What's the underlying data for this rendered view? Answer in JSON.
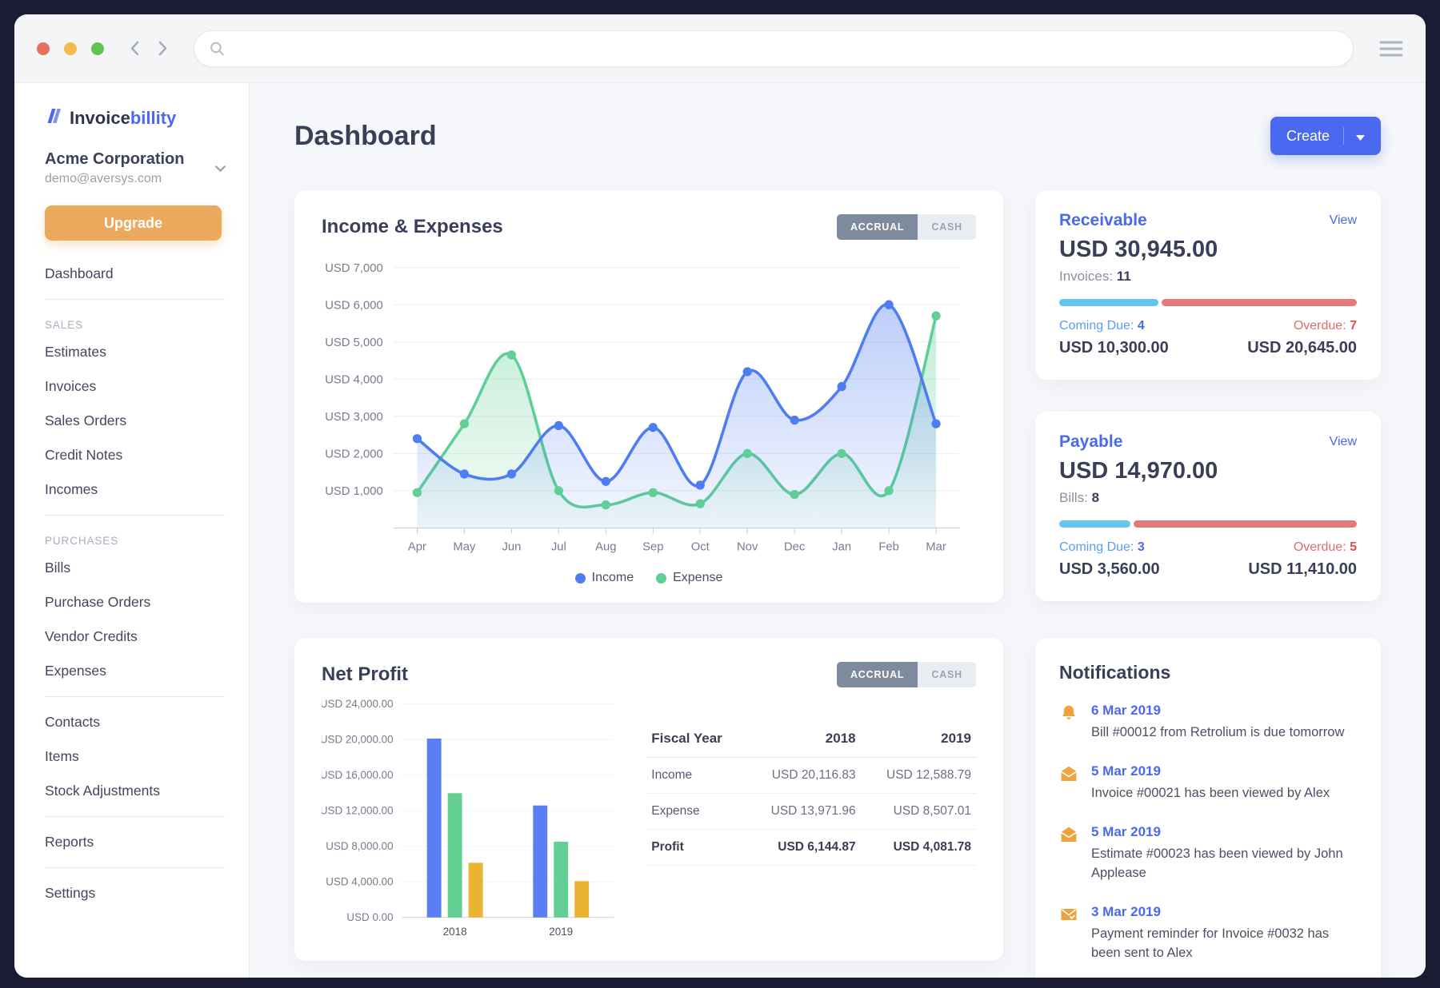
{
  "colors": {
    "accent_blue": "#4a68f0",
    "navy": "#3a3e59",
    "upgrade_orange": "#eaa95d",
    "notification_orange": "#f0a23e",
    "chart_income_blue": "#4e7df2",
    "chart_expense_green": "#5fcf95",
    "bar_profit_yellow": "#eab331",
    "progress_blue": "#63c6ef",
    "progress_red": "#e57a7a",
    "overdue_red": "#e06c6c",
    "coming_due_blue": "#5a9df5"
  },
  "chrome": {
    "search_value": ""
  },
  "sidebar": {
    "logo_text_1": "Invoice",
    "logo_text_2": "billity",
    "company_name": "Acme Corporation",
    "company_email": "demo@aversys.com",
    "upgrade_label": "Upgrade",
    "nav": [
      {
        "type": "item",
        "label": "Dashboard"
      },
      {
        "type": "divider"
      },
      {
        "type": "section",
        "label": "SALES"
      },
      {
        "type": "item",
        "label": "Estimates"
      },
      {
        "type": "item",
        "label": "Invoices"
      },
      {
        "type": "item",
        "label": "Sales Orders"
      },
      {
        "type": "item",
        "label": "Credit Notes"
      },
      {
        "type": "item",
        "label": "Incomes"
      },
      {
        "type": "divider"
      },
      {
        "type": "section",
        "label": "PURCHASES"
      },
      {
        "type": "item",
        "label": "Bills"
      },
      {
        "type": "item",
        "label": "Purchase Orders"
      },
      {
        "type": "item",
        "label": "Vendor Credits"
      },
      {
        "type": "item",
        "label": "Expenses"
      },
      {
        "type": "divider"
      },
      {
        "type": "item",
        "label": "Contacts"
      },
      {
        "type": "item",
        "label": "Items"
      },
      {
        "type": "item",
        "label": "Stock Adjustments"
      },
      {
        "type": "divider"
      },
      {
        "type": "item",
        "label": "Reports"
      },
      {
        "type": "divider"
      },
      {
        "type": "item",
        "label": "Settings"
      }
    ]
  },
  "header": {
    "title": "Dashboard",
    "create_label": "Create"
  },
  "income_expenses": {
    "title": "Income & Expenses",
    "toggle": {
      "accrual": "ACCRUAL",
      "cash": "CASH",
      "active": "ACCRUAL"
    },
    "legend": [
      {
        "label": "Income",
        "color": "#4e7df2"
      },
      {
        "label": "Expense",
        "color": "#5fcf95"
      }
    ],
    "chart_data": {
      "type": "area",
      "title": "Income & Expenses",
      "x": [
        "Apr",
        "May",
        "Jun",
        "Jul",
        "Aug",
        "Sep",
        "Oct",
        "Nov",
        "Dec",
        "Jan",
        "Feb",
        "Mar"
      ],
      "series": [
        {
          "name": "Expense",
          "color": "#5fcf95",
          "values": [
            950,
            2800,
            4650,
            1000,
            620,
            950,
            650,
            2000,
            900,
            2000,
            1000,
            5700
          ]
        },
        {
          "name": "Income",
          "color": "#4e7df2",
          "values": [
            2400,
            1450,
            1450,
            2750,
            1250,
            2700,
            1150,
            4200,
            2900,
            3800,
            6000,
            2800
          ]
        }
      ],
      "ylim": [
        0,
        7000
      ],
      "yticks": [
        1000,
        2000,
        3000,
        4000,
        5000,
        6000,
        7000
      ],
      "ytick_prefix": "USD ",
      "grid": true,
      "legend_position": "bottom"
    }
  },
  "net_profit": {
    "title": "Net Profit",
    "toggle": {
      "accrual": "ACCRUAL",
      "cash": "CASH",
      "active": "ACCRUAL"
    },
    "chart_data": {
      "type": "bar",
      "title": "Net Profit",
      "categories": [
        "2018",
        "2019"
      ],
      "series": [
        {
          "name": "Income",
          "color": "#5b7ff2",
          "values": [
            20116.83,
            12588.79
          ]
        },
        {
          "name": "Expense",
          "color": "#63cf92",
          "values": [
            13971.96,
            8507.01
          ]
        },
        {
          "name": "Profit",
          "color": "#eab331",
          "values": [
            6144.87,
            4081.78
          ]
        }
      ],
      "ylim": [
        0,
        24000
      ],
      "yticks": [
        0,
        4000,
        8000,
        12000,
        16000,
        20000,
        24000
      ],
      "ytick_prefix": "USD ",
      "grid": false
    },
    "table": {
      "headers": [
        "Fiscal Year",
        "2018",
        "2019"
      ],
      "rows": [
        {
          "label": "Income",
          "values": [
            "USD 20,116.83",
            "USD 12,588.79"
          ]
        },
        {
          "label": "Expense",
          "values": [
            "USD 13,971.96",
            "USD 8,507.01"
          ]
        },
        {
          "label": "Profit",
          "values": [
            "USD 6,144.87",
            "USD 4,081.78"
          ]
        }
      ]
    }
  },
  "receivable": {
    "title": "Receivable",
    "view_label": "View",
    "amount": "USD 30,945.00",
    "count_label": "Invoices:",
    "count": "11",
    "coming_due_label": "Coming Due:",
    "coming_due_count": "4",
    "coming_due_amount": "USD 10,300.00",
    "overdue_label": "Overdue:",
    "overdue_count": "7",
    "overdue_amount": "USD 20,645.00",
    "progress_pct_blue": 33.3
  },
  "payable": {
    "title": "Payable",
    "view_label": "View",
    "amount": "USD 14,970.00",
    "count_label": "Bills:",
    "count": "8",
    "coming_due_label": "Coming Due:",
    "coming_due_count": "3",
    "coming_due_amount": "USD 3,560.00",
    "overdue_label": "Overdue:",
    "overdue_count": "5",
    "overdue_amount": "USD 11,410.00",
    "progress_pct_blue": 23.8
  },
  "notifications": {
    "title": "Notifications",
    "items": [
      {
        "date": "6 Mar 2019",
        "text": "Bill #00012 from Retrolium is due tomorrow",
        "icon": "bell-icon"
      },
      {
        "date": "5 Mar 2019",
        "text": "Invoice #00021 has been viewed by Alex",
        "icon": "envelope-icon"
      },
      {
        "date": "5 Mar 2019",
        "text": "Estimate #00023 has been viewed by John Applease",
        "icon": "envelope-icon"
      },
      {
        "date": "3 Mar 2019",
        "text": "Payment reminder for Invoice #0032 has been sent to Alex",
        "icon": "envelope-check-icon"
      }
    ]
  }
}
